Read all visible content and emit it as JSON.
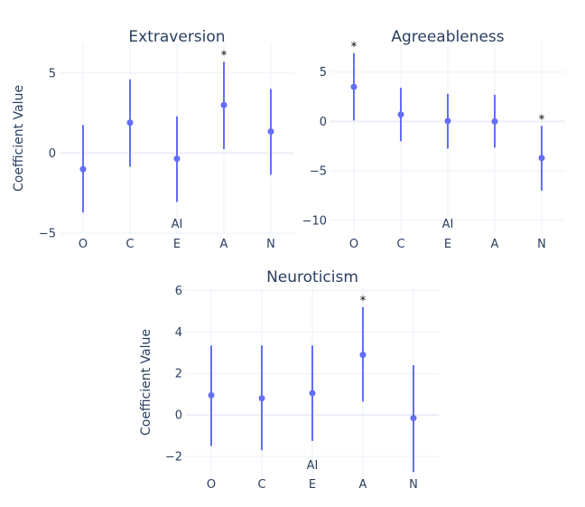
{
  "chart_data": [
    {
      "type": "scatter",
      "title": "Extraversion",
      "xlabel": "AI",
      "ylabel": "Coefficient Value",
      "categories": [
        "O",
        "C",
        "E",
        "A",
        "N"
      ],
      "values": [
        -1.0,
        1.9,
        -0.35,
        3.0,
        1.35
      ],
      "ci_low": [
        -3.7,
        -0.85,
        -3.05,
        0.25,
        -1.35
      ],
      "ci_high": [
        1.75,
        4.6,
        2.3,
        5.7,
        4.0
      ],
      "significant": [
        "",
        "",
        "",
        "*",
        ""
      ],
      "yticks": [
        -5,
        0,
        5
      ],
      "ytick_labels": [
        "−5",
        "0",
        "5"
      ],
      "ylim": [
        -5.0,
        6.85
      ]
    },
    {
      "type": "scatter",
      "title": "Agreeableness",
      "xlabel": "AI",
      "ylabel": "",
      "categories": [
        "O",
        "C",
        "E",
        "A",
        "N"
      ],
      "values": [
        3.5,
        0.7,
        0.05,
        0.0,
        -3.7
      ],
      "ci_low": [
        0.1,
        -2.0,
        -2.75,
        -2.65,
        -7.0
      ],
      "ci_high": [
        6.9,
        3.4,
        2.8,
        2.7,
        -0.45
      ],
      "significant": [
        "*",
        "",
        "",
        "",
        "*"
      ],
      "yticks": [
        -10,
        -5,
        0,
        5
      ],
      "ytick_labels": [
        "−10",
        "−5",
        "0",
        "5"
      ],
      "ylim": [
        -11.3,
        7.9
      ]
    },
    {
      "type": "scatter",
      "title": "Neuroticism",
      "xlabel": "AI",
      "ylabel": "Coefficient Value",
      "categories": [
        "O",
        "C",
        "E",
        "A",
        "N"
      ],
      "values": [
        0.95,
        0.8,
        1.05,
        2.9,
        -0.15
      ],
      "ci_low": [
        -1.5,
        -1.7,
        -1.25,
        0.65,
        -2.75
      ],
      "ci_high": [
        3.35,
        3.35,
        3.35,
        5.2,
        2.4
      ],
      "significant": [
        "",
        "",
        "",
        "*",
        ""
      ],
      "yticks": [
        -2,
        0,
        2,
        4,
        6
      ],
      "ytick_labels": [
        "−2",
        "0",
        "2",
        "4",
        "6"
      ],
      "ylim": [
        -3.0,
        6.15
      ]
    }
  ],
  "style": {
    "marker_color": "#636efa"
  }
}
